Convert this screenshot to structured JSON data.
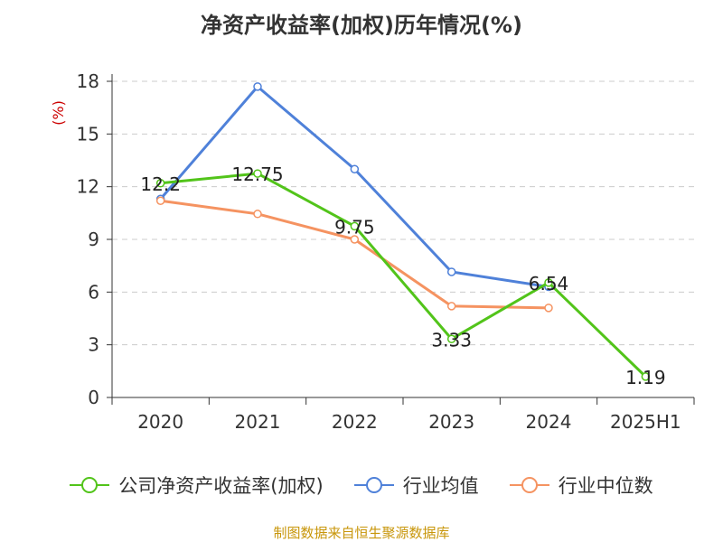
{
  "title": "净资产收益率(加权)历年情况(%)",
  "source": "制图数据来自恒生聚源数据库",
  "chart_data": {
    "type": "line",
    "title": "净资产收益率(加权)历年情况(%)",
    "ylabel": "(%)",
    "xlabel": "",
    "categories": [
      "2020",
      "2021",
      "2022",
      "2023",
      "2024",
      "2025H1"
    ],
    "ylim": [
      0,
      18
    ],
    "yticks": [
      0,
      3,
      6,
      9,
      12,
      15,
      18
    ],
    "grid": "horizontal-dashed",
    "legend": "bottom",
    "series": [
      {
        "name": "公司净资产收益率(加权)",
        "color": "#52c41a",
        "values": [
          12.2,
          12.75,
          9.75,
          3.33,
          6.54,
          1.19
        ],
        "labels": [
          "12.2",
          "12.75",
          "9.75",
          "3.33",
          "6.54",
          "1.19"
        ]
      },
      {
        "name": "行业均值",
        "color": "#4f81d9",
        "values": [
          11.3,
          17.7,
          13.0,
          7.15,
          6.3,
          null
        ]
      },
      {
        "name": "行业中位数",
        "color": "#f59361",
        "values": [
          11.2,
          10.45,
          9.0,
          5.2,
          5.1,
          null
        ]
      }
    ]
  }
}
